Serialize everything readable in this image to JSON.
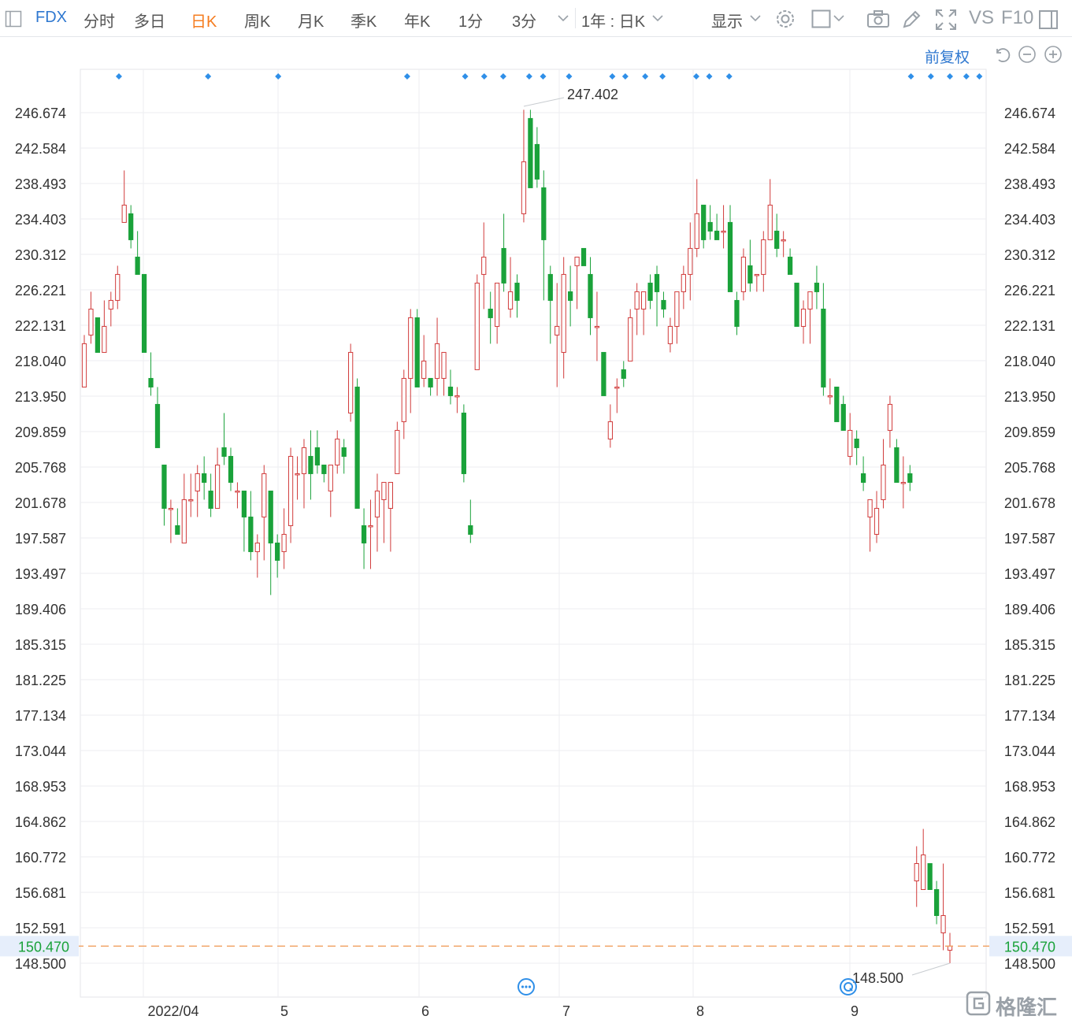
{
  "toolbar": {
    "symbol": "FDX",
    "items": [
      {
        "label": "分时",
        "active": false
      },
      {
        "label": "多日",
        "active": false
      },
      {
        "label": "日K",
        "active": true
      },
      {
        "label": "周K",
        "active": false
      },
      {
        "label": "月K",
        "active": false
      },
      {
        "label": "季K",
        "active": false
      },
      {
        "label": "年K",
        "active": false
      },
      {
        "label": "1分",
        "active": false
      },
      {
        "label": "3分",
        "active": false
      }
    ],
    "range_label": "1年 : 日K",
    "display_label": "显示",
    "vs_label": "VS",
    "f10_label": "F10",
    "icons": [
      "panel-icon",
      "chevron-down-icon",
      "gear-icon",
      "square-icon",
      "camera-icon",
      "pencil-icon",
      "fullscreen-icon",
      "sidebar-icon"
    ]
  },
  "subbar": {
    "adjust_label": "前复权",
    "icons": [
      "undo-icon",
      "zoom-out-icon",
      "zoom-in-icon"
    ]
  },
  "colors": {
    "up": "#d13b3b",
    "down": "#1aa23a",
    "grid": "#eceef1",
    "last_price": "#f0a060",
    "marker": "#2f8fe8",
    "accent": "#2f78d0"
  },
  "chart_data": {
    "type": "candlestick",
    "y_ticks": [
      "246.674",
      "242.584",
      "238.493",
      "234.403",
      "230.312",
      "226.221",
      "222.131",
      "218.040",
      "213.950",
      "209.859",
      "205.768",
      "201.678",
      "197.587",
      "193.497",
      "189.406",
      "185.315",
      "181.225",
      "177.134",
      "173.044",
      "168.953",
      "164.862",
      "160.772",
      "156.681",
      "152.591",
      "148.500"
    ],
    "x_labels": [
      "2022/04",
      "5",
      "6",
      "7",
      "8",
      "9"
    ],
    "max_label": "247.402",
    "min_label": "148.500",
    "last_price": "150.470",
    "candles": [
      {
        "o": 215,
        "h": 221,
        "l": 215,
        "c": 220
      },
      {
        "o": 221,
        "h": 226,
        "l": 220,
        "c": 224
      },
      {
        "o": 223,
        "h": 223,
        "l": 219,
        "c": 219
      },
      {
        "o": 219,
        "h": 225,
        "l": 219,
        "c": 222
      },
      {
        "o": 224,
        "h": 226,
        "l": 222,
        "c": 225
      },
      {
        "o": 225,
        "h": 229,
        "l": 224,
        "c": 228
      },
      {
        "o": 234,
        "h": 240,
        "l": 234,
        "c": 236
      },
      {
        "o": 235,
        "h": 236,
        "l": 231,
        "c": 232
      },
      {
        "o": 230,
        "h": 233,
        "l": 228,
        "c": 228
      },
      {
        "o": 228,
        "h": 228,
        "l": 219,
        "c": 219
      },
      {
        "o": 216,
        "h": 219,
        "l": 214,
        "c": 215
      },
      {
        "o": 213,
        "h": 215,
        "l": 208,
        "c": 208
      },
      {
        "o": 206,
        "h": 206,
        "l": 199,
        "c": 201
      },
      {
        "o": 201,
        "h": 202,
        "l": 197,
        "c": 201
      },
      {
        "o": 199,
        "h": 201,
        "l": 198,
        "c": 198
      },
      {
        "o": 197,
        "h": 205,
        "l": 197,
        "c": 202
      },
      {
        "o": 202,
        "h": 205,
        "l": 200,
        "c": 202
      },
      {
        "o": 203,
        "h": 206,
        "l": 200,
        "c": 205
      },
      {
        "o": 205,
        "h": 207,
        "l": 202,
        "c": 204
      },
      {
        "o": 203,
        "h": 205,
        "l": 200,
        "c": 201
      },
      {
        "o": 201,
        "h": 208,
        "l": 201,
        "c": 206
      },
      {
        "o": 208,
        "h": 212,
        "l": 206,
        "c": 207
      },
      {
        "o": 207,
        "h": 208,
        "l": 203,
        "c": 204
      },
      {
        "o": 203,
        "h": 204,
        "l": 201,
        "c": 203
      },
      {
        "o": 203,
        "h": 203,
        "l": 196,
        "c": 200
      },
      {
        "o": 200,
        "h": 203,
        "l": 195,
        "c": 196
      },
      {
        "o": 196,
        "h": 198,
        "l": 193,
        "c": 197
      },
      {
        "o": 200,
        "h": 206,
        "l": 195,
        "c": 205
      },
      {
        "o": 203,
        "h": 203,
        "l": 191,
        "c": 197
      },
      {
        "o": 197,
        "h": 198,
        "l": 193,
        "c": 195
      },
      {
        "o": 196,
        "h": 201,
        "l": 194,
        "c": 198
      },
      {
        "o": 199,
        "h": 208,
        "l": 197,
        "c": 207
      },
      {
        "o": 205,
        "h": 207,
        "l": 202,
        "c": 205
      },
      {
        "o": 205,
        "h": 209,
        "l": 201,
        "c": 208
      },
      {
        "o": 207,
        "h": 210,
        "l": 202,
        "c": 205
      },
      {
        "o": 208,
        "h": 210,
        "l": 205,
        "c": 206
      },
      {
        "o": 206,
        "h": 206,
        "l": 204,
        "c": 205
      },
      {
        "o": 203,
        "h": 206,
        "l": 200,
        "c": 206
      },
      {
        "o": 206,
        "h": 210,
        "l": 205,
        "c": 209
      },
      {
        "o": 208,
        "h": 209,
        "l": 205,
        "c": 207
      },
      {
        "o": 212,
        "h": 220,
        "l": 211,
        "c": 219
      },
      {
        "o": 215,
        "h": 216,
        "l": 201,
        "c": 201
      },
      {
        "o": 199,
        "h": 201,
        "l": 194,
        "c": 197
      },
      {
        "o": 199,
        "h": 202,
        "l": 194,
        "c": 199
      },
      {
        "o": 200,
        "h": 205,
        "l": 196,
        "c": 203
      },
      {
        "o": 202,
        "h": 204,
        "l": 197,
        "c": 204
      },
      {
        "o": 201,
        "h": 204,
        "l": 196,
        "c": 204
      },
      {
        "o": 205,
        "h": 211,
        "l": 205,
        "c": 210
      },
      {
        "o": 211,
        "h": 217,
        "l": 209,
        "c": 216
      },
      {
        "o": 216,
        "h": 224,
        "l": 212,
        "c": 223
      },
      {
        "o": 223,
        "h": 224,
        "l": 215,
        "c": 215
      },
      {
        "o": 216,
        "h": 221,
        "l": 215,
        "c": 218
      },
      {
        "o": 216,
        "h": 216,
        "l": 214,
        "c": 215
      },
      {
        "o": 216,
        "h": 223,
        "l": 214,
        "c": 220
      },
      {
        "o": 216,
        "h": 219,
        "l": 214,
        "c": 219
      },
      {
        "o": 215,
        "h": 217,
        "l": 213,
        "c": 214
      },
      {
        "o": 214,
        "h": 215,
        "l": 212,
        "c": 214
      },
      {
        "o": 212,
        "h": 213,
        "l": 204,
        "c": 205
      },
      {
        "o": 199,
        "h": 202,
        "l": 197,
        "c": 198
      },
      {
        "o": 217,
        "h": 228,
        "l": 217,
        "c": 227
      },
      {
        "o": 228,
        "h": 234,
        "l": 224,
        "c": 230
      },
      {
        "o": 224,
        "h": 226,
        "l": 220,
        "c": 223
      },
      {
        "o": 222,
        "h": 227,
        "l": 220,
        "c": 227
      },
      {
        "o": 231,
        "h": 235,
        "l": 226,
        "c": 227
      },
      {
        "o": 224,
        "h": 230,
        "l": 223,
        "c": 226
      },
      {
        "o": 227,
        "h": 228,
        "l": 223,
        "c": 225
      },
      {
        "o": 235,
        "h": 247,
        "l": 234,
        "c": 241
      },
      {
        "o": 246,
        "h": 247,
        "l": 238,
        "c": 238
      },
      {
        "o": 243,
        "h": 245,
        "l": 238,
        "c": 239
      },
      {
        "o": 238,
        "h": 240,
        "l": 225,
        "c": 232
      },
      {
        "o": 228,
        "h": 229,
        "l": 220,
        "c": 225
      },
      {
        "o": 221,
        "h": 227,
        "l": 215,
        "c": 222
      },
      {
        "o": 219,
        "h": 230,
        "l": 216,
        "c": 228
      },
      {
        "o": 226,
        "h": 229,
        "l": 222,
        "c": 225
      },
      {
        "o": 229,
        "h": 230,
        "l": 224,
        "c": 230
      },
      {
        "o": 231,
        "h": 231,
        "l": 229,
        "c": 229
      },
      {
        "o": 228,
        "h": 230,
        "l": 221,
        "c": 223
      },
      {
        "o": 222,
        "h": 226,
        "l": 218,
        "c": 222
      },
      {
        "o": 219,
        "h": 219,
        "l": 214,
        "c": 214
      },
      {
        "o": 209,
        "h": 213,
        "l": 208,
        "c": 211
      },
      {
        "o": 215,
        "h": 216,
        "l": 212,
        "c": 215
      },
      {
        "o": 217,
        "h": 218,
        "l": 215,
        "c": 216
      },
      {
        "o": 218,
        "h": 224,
        "l": 218,
        "c": 223
      },
      {
        "o": 224,
        "h": 227,
        "l": 221,
        "c": 226
      },
      {
        "o": 224,
        "h": 226,
        "l": 221,
        "c": 226
      },
      {
        "o": 227,
        "h": 228,
        "l": 224,
        "c": 225
      },
      {
        "o": 228,
        "h": 229,
        "l": 222,
        "c": 226
      },
      {
        "o": 225,
        "h": 226,
        "l": 223,
        "c": 224
      },
      {
        "o": 220,
        "h": 223,
        "l": 219,
        "c": 222
      },
      {
        "o": 222,
        "h": 226,
        "l": 220,
        "c": 226
      },
      {
        "o": 226,
        "h": 229,
        "l": 224,
        "c": 228
      },
      {
        "o": 228,
        "h": 234,
        "l": 225,
        "c": 231
      },
      {
        "o": 231,
        "h": 239,
        "l": 230,
        "c": 235
      },
      {
        "o": 236,
        "h": 236,
        "l": 231,
        "c": 232
      },
      {
        "o": 234,
        "h": 236,
        "l": 232,
        "c": 233
      },
      {
        "o": 233,
        "h": 235,
        "l": 232,
        "c": 232
      },
      {
        "o": 233,
        "h": 236,
        "l": 231,
        "c": 233
      },
      {
        "o": 234,
        "h": 236,
        "l": 226,
        "c": 226
      },
      {
        "o": 225,
        "h": 226,
        "l": 221,
        "c": 222
      },
      {
        "o": 226,
        "h": 231,
        "l": 225,
        "c": 230
      },
      {
        "o": 229,
        "h": 232,
        "l": 226,
        "c": 227
      },
      {
        "o": 228,
        "h": 228,
        "l": 226,
        "c": 228
      },
      {
        "o": 228,
        "h": 233,
        "l": 226,
        "c": 232
      },
      {
        "o": 232,
        "h": 239,
        "l": 232,
        "c": 236
      },
      {
        "o": 233,
        "h": 235,
        "l": 230,
        "c": 231
      },
      {
        "o": 232,
        "h": 233,
        "l": 230,
        "c": 232
      },
      {
        "o": 230,
        "h": 231,
        "l": 228,
        "c": 228
      },
      {
        "o": 227,
        "h": 227,
        "l": 222,
        "c": 222
      },
      {
        "o": 222,
        "h": 225,
        "l": 220,
        "c": 224
      },
      {
        "o": 224,
        "h": 226,
        "l": 220,
        "c": 226
      },
      {
        "o": 227,
        "h": 229,
        "l": 224,
        "c": 226
      },
      {
        "o": 224,
        "h": 227,
        "l": 214,
        "c": 215
      },
      {
        "o": 214,
        "h": 216,
        "l": 213,
        "c": 214
      },
      {
        "o": 215,
        "h": 215,
        "l": 211,
        "c": 211
      },
      {
        "o": 213,
        "h": 214,
        "l": 210,
        "c": 210
      },
      {
        "o": 207,
        "h": 212,
        "l": 206,
        "c": 210
      },
      {
        "o": 209,
        "h": 210,
        "l": 206,
        "c": 208
      },
      {
        "o": 205,
        "h": 207,
        "l": 203,
        "c": 204
      },
      {
        "o": 200,
        "h": 202,
        "l": 196,
        "c": 202
      },
      {
        "o": 198,
        "h": 203,
        "l": 197,
        "c": 201
      },
      {
        "o": 202,
        "h": 209,
        "l": 201,
        "c": 206
      },
      {
        "o": 210,
        "h": 214,
        "l": 208,
        "c": 213
      },
      {
        "o": 208,
        "h": 209,
        "l": 204,
        "c": 204
      },
      {
        "o": 204,
        "h": 207,
        "l": 201,
        "c": 204
      },
      {
        "o": 205,
        "h": 206,
        "l": 203,
        "c": 204
      },
      {
        "o": 158,
        "h": 162,
        "l": 155,
        "c": 160
      },
      {
        "o": 157,
        "h": 164,
        "l": 157,
        "c": 161
      },
      {
        "o": 160,
        "h": 160,
        "l": 157,
        "c": 157
      },
      {
        "o": 157,
        "h": 158,
        "l": 153,
        "c": 154
      },
      {
        "o": 152,
        "h": 160,
        "l": 150,
        "c": 154
      },
      {
        "o": 150,
        "h": 152,
        "l": 148.5,
        "c": 150.47
      }
    ],
    "marker_x_frac": [
      0.04,
      0.143,
      0.224,
      0.373,
      0.44,
      0.462,
      0.484,
      0.514,
      0.53,
      0.56,
      0.61,
      0.625,
      0.648,
      0.668,
      0.707,
      0.722,
      0.745,
      0.955,
      0.978,
      1.0,
      1.019,
      1.034
    ]
  },
  "watermark": {
    "text": "格隆汇",
    "icon": "gelonghui-logo-icon"
  }
}
